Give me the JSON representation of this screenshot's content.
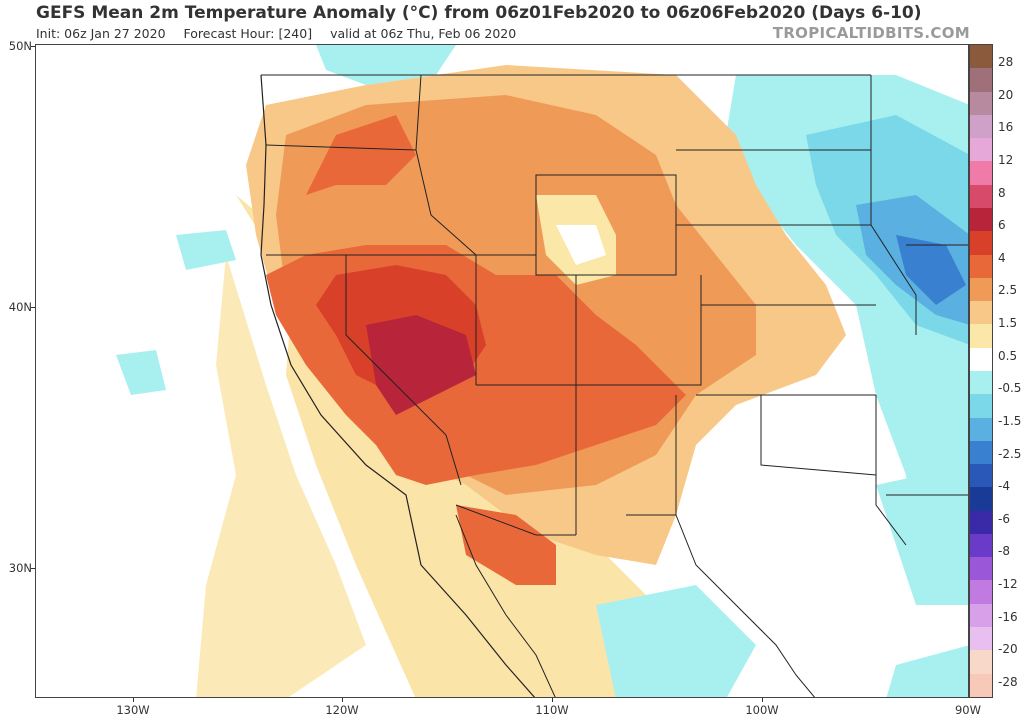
{
  "header": {
    "title": "GEFS Mean 2m Temperature Anomaly (°C) from 06z01Feb2020 to 06z06Feb2020 (Days 6-10)",
    "init": "Init: 06z Jan 27 2020",
    "forecast_hour": "Forecast Hour: [240]",
    "valid": "valid at 06z Thu, Feb 06 2020",
    "brand": "TROPICALTIDBITS.COM"
  },
  "axes": {
    "lat_labels": [
      "50N",
      "40N",
      "30N"
    ],
    "lon_labels": [
      "130W",
      "120W",
      "110W",
      "100W",
      "90W"
    ]
  },
  "colorbar": {
    "labels": [
      "28",
      "20",
      "16",
      "12",
      "8",
      "6",
      "4",
      "2.5",
      "1.5",
      "0.5",
      "-0.5",
      "-1.5",
      "-2.5",
      "-4",
      "-6",
      "-8",
      "-12",
      "-16",
      "-20",
      "-28"
    ],
    "colors": [
      "#8b5a3c",
      "#a0707a",
      "#b88aa0",
      "#cfa0c8",
      "#e6a8d8",
      "#f07aa8",
      "#d84a6a",
      "#b8243a",
      "#d8402a",
      "#e8683a",
      "#f09a58",
      "#f8c888",
      "#fbe8a8",
      "#ffffff",
      "#a8f0f0",
      "#7ad8e8",
      "#5ab0e0",
      "#3a80d0",
      "#2a58b8",
      "#1a3a98",
      "#3a2aa8",
      "#6a3ac8",
      "#9a58d8",
      "#c07ae0",
      "#d8a0e8",
      "#e8c0f0",
      "#f8d8c8",
      "#f8c8b8"
    ]
  },
  "map": {
    "legend_levels_note": ""
  }
}
